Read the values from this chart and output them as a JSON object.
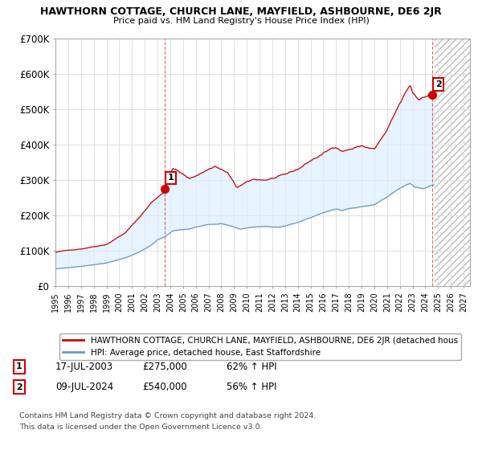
{
  "title": "HAWTHORN COTTAGE, CHURCH LANE, MAYFIELD, ASHBOURNE, DE6 2JR",
  "subtitle": "Price paid vs. HM Land Registry's House Price Index (HPI)",
  "ylim": [
    0,
    700000
  ],
  "yticks": [
    0,
    100000,
    200000,
    300000,
    400000,
    500000,
    600000,
    700000
  ],
  "ytick_labels": [
    "£0",
    "£100K",
    "£200K",
    "£300K",
    "£400K",
    "£500K",
    "£600K",
    "£700K"
  ],
  "xlim_start": 1995.0,
  "xlim_end": 2027.5,
  "hatch_start": 2024.75,
  "sale1_x": 2003.54,
  "sale1_y": 275000,
  "sale1_label": "1",
  "sale1_date": "17-JUL-2003",
  "sale1_price": "£275,000",
  "sale1_pct": "62% ↑ HPI",
  "sale2_x": 2024.52,
  "sale2_y": 540000,
  "sale2_label": "2",
  "sale2_date": "09-JUL-2024",
  "sale2_price": "£540,000",
  "sale2_pct": "56% ↑ HPI",
  "red_color": "#cc0000",
  "blue_color": "#6699cc",
  "blue_fill_color": "#ddeeff",
  "bg_color": "#ffffff",
  "grid_color": "#dddddd",
  "legend_line1": "HAWTHORN COTTAGE, CHURCH LANE, MAYFIELD, ASHBOURNE, DE6 2JR (detached hous",
  "legend_line2": "HPI: Average price, detached house, East Staffordshire",
  "footer1": "Contains HM Land Registry data © Crown copyright and database right 2024.",
  "footer2": "This data is licensed under the Open Government Licence v3.0."
}
